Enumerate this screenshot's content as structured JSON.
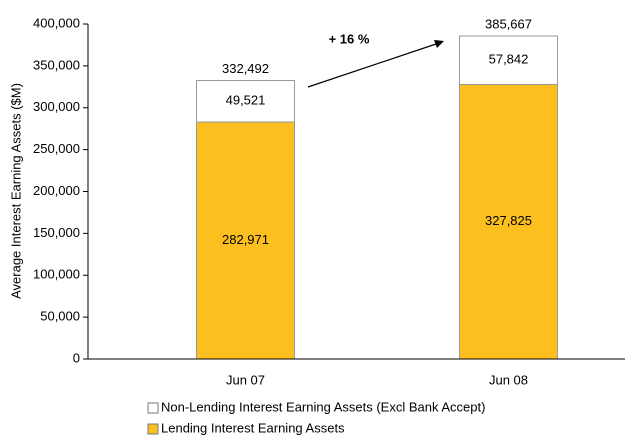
{
  "chart_data": {
    "type": "stacked_bar",
    "y_label": "Average Interest Earning Assets ($M)",
    "categories": [
      "Jun 07",
      "Jun 08"
    ],
    "series": [
      {
        "name": "Lending Interest Earning Assets",
        "color": "#fbc020",
        "values": [
          282971,
          327825
        ],
        "value_labels": [
          "282,971",
          "327,825"
        ]
      },
      {
        "name": "Non-Lending Interest Earning Assets (Excl Bank Accept)",
        "color": "#ffffff",
        "values": [
          49521,
          57842
        ],
        "value_labels": [
          "49,521",
          "57,842"
        ]
      }
    ],
    "totals": {
      "values": [
        332492,
        385667
      ],
      "value_labels": [
        "332,492",
        "385,667"
      ]
    },
    "annotation": "+ 16 %",
    "ylim": [
      0,
      400000
    ],
    "yticks": [
      0,
      {
        "value": 50000,
        "label": "50,000"
      },
      {
        "value": 100000,
        "label": "100,000"
      },
      {
        "value": 150000,
        "label": "150,000"
      },
      {
        "value": 200000,
        "label": "200,000"
      },
      {
        "value": 250000,
        "label": "250,000"
      },
      {
        "value": 300000,
        "label": "300,000"
      },
      {
        "value": 350000,
        "label": "350,000"
      },
      {
        "value": 400000,
        "label": "400,000"
      }
    ]
  }
}
